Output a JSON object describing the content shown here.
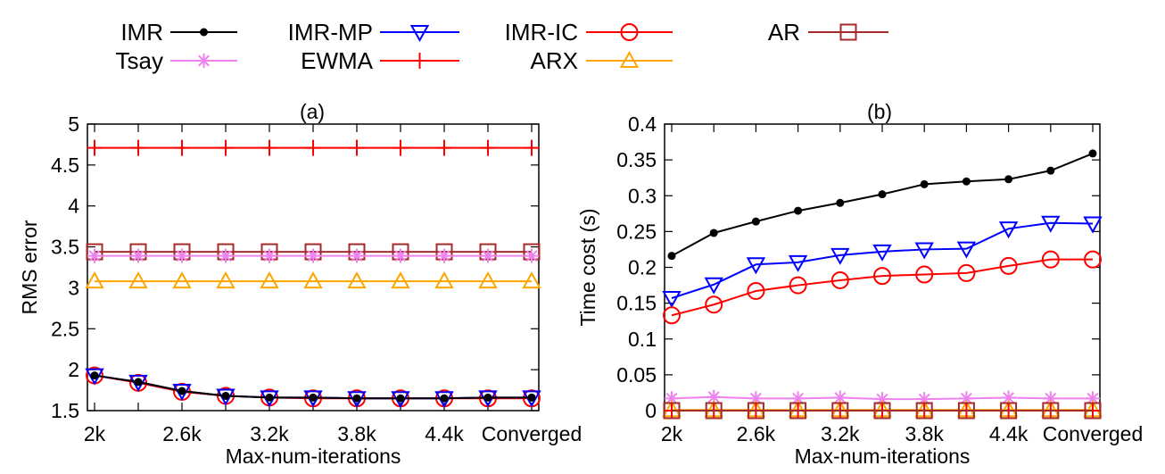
{
  "legend": {
    "entries": [
      {
        "label": "IMR",
        "color": "#000000",
        "marker": "dot"
      },
      {
        "label": "IMR-MP",
        "color": "#0000ff",
        "marker": "triangle-down"
      },
      {
        "label": "IMR-IC",
        "color": "#ff0000",
        "marker": "circle"
      },
      {
        "label": "AR",
        "color": "#a52a2a",
        "marker": "square"
      },
      {
        "label": "Tsay",
        "color": "#ee82ee",
        "marker": "star"
      },
      {
        "label": "EWMA",
        "color": "#ff0000",
        "marker": "plus"
      },
      {
        "label": "ARX",
        "color": "#ffa500",
        "marker": "triangle-up"
      }
    ]
  },
  "chart_data": [
    {
      "type": "line",
      "title": "(a)",
      "xlabel": "Max-num-iterations",
      "ylabel": "RMS error",
      "ylim": [
        1.5,
        5
      ],
      "yticks": [
        "1.5",
        "2",
        "2.5",
        "3",
        "3.5",
        "4",
        "4.5",
        "5"
      ],
      "x_tick_labels": [
        "2k",
        "2.6k",
        "3.2k",
        "3.8k",
        "4.4k",
        "Converged"
      ],
      "x": [
        "2k",
        "2.3k",
        "2.6k",
        "2.9k",
        "3.2k",
        "3.5k",
        "3.8k",
        "4.1k",
        "4.4k",
        "4.7k",
        "Converged"
      ],
      "grid": false,
      "series": [
        {
          "name": "EWMA",
          "color": "#ff0000",
          "marker": "plus",
          "values": [
            4.71,
            4.71,
            4.71,
            4.71,
            4.71,
            4.71,
            4.71,
            4.71,
            4.71,
            4.71,
            4.71
          ]
        },
        {
          "name": "AR",
          "color": "#a52a2a",
          "marker": "square",
          "values": [
            3.44,
            3.44,
            3.44,
            3.44,
            3.44,
            3.44,
            3.44,
            3.44,
            3.44,
            3.44,
            3.44
          ]
        },
        {
          "name": "Tsay",
          "color": "#ee82ee",
          "marker": "star",
          "values": [
            3.39,
            3.39,
            3.39,
            3.39,
            3.39,
            3.39,
            3.39,
            3.39,
            3.39,
            3.39,
            3.39
          ]
        },
        {
          "name": "ARX",
          "color": "#ffa500",
          "marker": "triangle-up",
          "values": [
            3.08,
            3.08,
            3.08,
            3.08,
            3.08,
            3.08,
            3.08,
            3.08,
            3.08,
            3.08,
            3.08
          ]
        },
        {
          "name": "IMR-IC",
          "color": "#ff0000",
          "marker": "circle",
          "values": [
            1.93,
            1.84,
            1.73,
            1.68,
            1.66,
            1.65,
            1.65,
            1.65,
            1.65,
            1.65,
            1.65
          ]
        },
        {
          "name": "IMR-MP",
          "color": "#0000ff",
          "marker": "triangle-down",
          "values": [
            1.93,
            1.85,
            1.74,
            1.68,
            1.66,
            1.66,
            1.65,
            1.65,
            1.65,
            1.66,
            1.66
          ]
        },
        {
          "name": "IMR",
          "color": "#000000",
          "marker": "dot",
          "values": [
            1.93,
            1.85,
            1.74,
            1.68,
            1.66,
            1.66,
            1.65,
            1.65,
            1.65,
            1.66,
            1.66
          ]
        }
      ]
    },
    {
      "type": "line",
      "title": "(b)",
      "xlabel": "Max-num-iterations",
      "ylabel": "Time cost (s)",
      "ylim": [
        0,
        0.4
      ],
      "yticks": [
        "0",
        "0.05",
        "0.1",
        "0.15",
        "0.2",
        "0.25",
        "0.3",
        "0.35",
        "0.4"
      ],
      "x_tick_labels": [
        "2k",
        "2.6k",
        "3.2k",
        "3.8k",
        "4.4k",
        "Converged"
      ],
      "x": [
        "2k",
        "2.3k",
        "2.6k",
        "2.9k",
        "3.2k",
        "3.5k",
        "3.8k",
        "4.1k",
        "4.4k",
        "4.7k",
        "Converged"
      ],
      "grid": false,
      "series": [
        {
          "name": "IMR",
          "color": "#000000",
          "marker": "dot",
          "values": [
            0.216,
            0.248,
            0.264,
            0.279,
            0.29,
            0.302,
            0.316,
            0.32,
            0.323,
            0.335,
            0.359
          ]
        },
        {
          "name": "IMR-MP",
          "color": "#0000ff",
          "marker": "triangle-down",
          "values": [
            0.157,
            0.176,
            0.204,
            0.207,
            0.217,
            0.222,
            0.225,
            0.226,
            0.254,
            0.262,
            0.261
          ]
        },
        {
          "name": "IMR-IC",
          "color": "#ff0000",
          "marker": "circle",
          "values": [
            0.133,
            0.148,
            0.167,
            0.175,
            0.182,
            0.188,
            0.19,
            0.192,
            0.202,
            0.211,
            0.211
          ]
        },
        {
          "name": "Tsay",
          "color": "#ee82ee",
          "marker": "star",
          "values": [
            0.017,
            0.019,
            0.017,
            0.017,
            0.018,
            0.016,
            0.016,
            0.017,
            0.018,
            0.017,
            0.017
          ]
        },
        {
          "name": "ARX",
          "color": "#ffa500",
          "marker": "triangle-up",
          "values": [
            0.001,
            0.001,
            0.001,
            0.001,
            0.001,
            0.001,
            0.001,
            0.001,
            0.001,
            0.001,
            0.001
          ]
        },
        {
          "name": "EWMA",
          "color": "#ff0000",
          "marker": "plus",
          "values": [
            0.0,
            0.0,
            0.0,
            0.0,
            0.0,
            0.0,
            0.0,
            0.0,
            0.0,
            0.0,
            0.0
          ]
        },
        {
          "name": "AR",
          "color": "#a52a2a",
          "marker": "square",
          "values": [
            0.0,
            0.0,
            0.0,
            0.0,
            0.0,
            0.0,
            0.0,
            0.0,
            0.0,
            0.0,
            0.0
          ]
        }
      ]
    }
  ]
}
